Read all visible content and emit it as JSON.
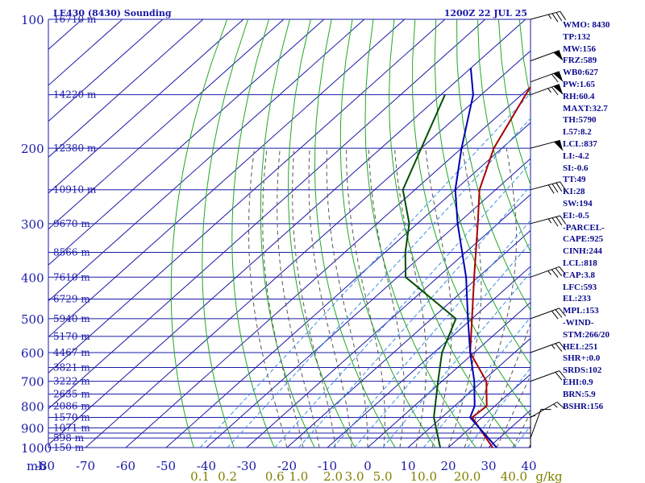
{
  "header": {
    "station": "LE430 (8430) Sounding",
    "datetime": "1200Z 22 JUL 25"
  },
  "indices": [
    "WMO: 8430",
    "TP:132",
    "MW:156",
    "FRZ:589",
    "WB0:627",
    "PW:1.65",
    "RH:60.4",
    "MAXT:32.7",
    "TH:5790",
    "L57:8.2",
    "LCL:837",
    "LI:-4.2",
    "SI:-0.6",
    "TT:49",
    "KI:28",
    "SW:194",
    "EI:-0.5",
    "-PARCEL-",
    "CAPE:925",
    "CINH:244",
    "LCL:818",
    "CAP:3.8",
    "LFC:593",
    "EL:233",
    "MPL:153",
    "-WIND-",
    "STM:266/20",
    "HEL:251",
    "SHR+:0.0",
    "SRDS:102",
    "EHI:0.9",
    "BRN:5.9",
    "BSHR:156"
  ],
  "colors": {
    "isobar": "#1a1aa8",
    "isotherm": "#1a1aa8",
    "dry_adiabat": "#22a822",
    "moist_adiabat": "#555555",
    "mixing_ratio": "#3b8fe0",
    "temperature": "#aa0000",
    "dewpoint": "#005000",
    "parcel": "#0000b0",
    "axis_text": "#1a1aa8",
    "mixing_text": "#808000",
    "sidebar_text": "#0a0a8c",
    "wind": "#000000"
  },
  "chart_data": {
    "type": "line",
    "title": "LE430 (8430) Sounding",
    "subtitle": "1200Z 22 JUL 25",
    "xlabel": "",
    "ylabel": "mb",
    "ylim": [
      1000,
      100
    ],
    "xlim": [
      -80,
      40
    ],
    "pressure_ticks": [
      100,
      200,
      300,
      400,
      500,
      600,
      700,
      800,
      900,
      1000
    ],
    "pressure_levels_lines": [
      100,
      150,
      200,
      250,
      300,
      350,
      400,
      450,
      500,
      550,
      600,
      650,
      700,
      750,
      800,
      850,
      900,
      925,
      950,
      1000
    ],
    "temperature_ticks": [
      -80,
      -70,
      -60,
      -50,
      -40,
      -30,
      -20,
      -10,
      0,
      10,
      20,
      30,
      40
    ],
    "temperature_tick_labels": [
      "-80",
      "-70",
      "-60",
      "-50",
      "-40",
      "-30",
      "-20",
      "-10",
      "0",
      "10",
      "20",
      "30",
      "40"
    ],
    "height_labels": [
      {
        "p": 100,
        "label": "16710 m"
      },
      {
        "p": 150,
        "label": "14220 m"
      },
      {
        "p": 200,
        "label": "12380 m"
      },
      {
        "p": 250,
        "label": "10910 m"
      },
      {
        "p": 300,
        "label": "9670 m"
      },
      {
        "p": 350,
        "label": "8566 m"
      },
      {
        "p": 400,
        "label": "7610 m"
      },
      {
        "p": 450,
        "label": "6729 m"
      },
      {
        "p": 500,
        "label": "5940 m"
      },
      {
        "p": 550,
        "label": "5170 m"
      },
      {
        "p": 600,
        "label": "4467 m"
      },
      {
        "p": 650,
        "label": "3821 m"
      },
      {
        "p": 700,
        "label": "3222 m"
      },
      {
        "p": 750,
        "label": "2635 m"
      },
      {
        "p": 800,
        "label": "2086 m"
      },
      {
        "p": 850,
        "label": "1570 m"
      },
      {
        "p": 900,
        "label": "1071 m"
      },
      {
        "p": 950,
        "label": "598 m"
      },
      {
        "p": 1000,
        "label": "150 m"
      }
    ],
    "mixing_ratio_labels": [
      {
        "w": 0.1,
        "label": "0.1"
      },
      {
        "w": 0.2,
        "label": "0.2"
      },
      {
        "w": 0.6,
        "label": "0.6"
      },
      {
        "w": 1.0,
        "label": "1.0"
      },
      {
        "w": 2.0,
        "label": "2.0"
      },
      {
        "w": 3.0,
        "label": "3.0"
      },
      {
        "w": 5.0,
        "label": "5.0"
      },
      {
        "w": 10.0,
        "label": "10.0"
      },
      {
        "w": 20.0,
        "label": "20.0"
      },
      {
        "w": 40.0,
        "label": "40.0"
      }
    ],
    "mixing_unit": "g/kg",
    "series": [
      {
        "kind": "temperature",
        "points": [
          {
            "p": 1000,
            "t": 31
          },
          {
            "p": 850,
            "t": 17.5
          },
          {
            "p": 800,
            "t": 18
          },
          {
            "p": 700,
            "t": 11
          },
          {
            "p": 600,
            "t": -1
          },
          {
            "p": 500,
            "t": -10
          },
          {
            "p": 400,
            "t": -21
          },
          {
            "p": 300,
            "t": -35
          },
          {
            "p": 250,
            "t": -44
          },
          {
            "p": 200,
            "t": -52
          },
          {
            "p": 150,
            "t": -59
          },
          {
            "p": 120,
            "t": -64
          },
          {
            "p": 100,
            "t": -66
          }
        ]
      },
      {
        "kind": "dewpoint",
        "points": [
          {
            "p": 1000,
            "t": 18
          },
          {
            "p": 850,
            "t": 8
          },
          {
            "p": 700,
            "t": -1
          },
          {
            "p": 600,
            "t": -8
          },
          {
            "p": 500,
            "t": -14
          },
          {
            "p": 400,
            "t": -38
          },
          {
            "p": 350,
            "t": -45
          },
          {
            "p": 300,
            "t": -52
          },
          {
            "p": 250,
            "t": -63
          },
          {
            "p": 200,
            "t": -70
          },
          {
            "p": 150,
            "t": -79
          }
        ]
      },
      {
        "kind": "parcel",
        "points": [
          {
            "p": 1000,
            "t": 32
          },
          {
            "p": 850,
            "t": 17
          },
          {
            "p": 800,
            "t": 15
          },
          {
            "p": 700,
            "t": 8
          },
          {
            "p": 600,
            "t": -1
          },
          {
            "p": 500,
            "t": -11
          },
          {
            "p": 400,
            "t": -23
          },
          {
            "p": 300,
            "t": -40
          },
          {
            "p": 250,
            "t": -50
          },
          {
            "p": 200,
            "t": -60
          },
          {
            "p": 150,
            "t": -72
          },
          {
            "p": 130,
            "t": -80
          }
        ]
      }
    ],
    "wind_levels": [
      {
        "p": 1000,
        "dir": 180,
        "spd": 5
      },
      {
        "p": 950,
        "dir": 200,
        "spd": 10
      },
      {
        "p": 850,
        "dir": 240,
        "spd": 15
      },
      {
        "p": 700,
        "dir": 250,
        "spd": 20
      },
      {
        "p": 600,
        "dir": 250,
        "spd": 25
      },
      {
        "p": 500,
        "dir": 250,
        "spd": 30
      },
      {
        "p": 400,
        "dir": 250,
        "spd": 35
      },
      {
        "p": 300,
        "dir": 255,
        "spd": 35
      },
      {
        "p": 250,
        "dir": 255,
        "spd": 40
      },
      {
        "p": 200,
        "dir": 255,
        "spd": 50
      },
      {
        "p": 150,
        "dir": 250,
        "spd": 65
      },
      {
        "p": 140,
        "dir": 250,
        "spd": 60
      },
      {
        "p": 125,
        "dir": 250,
        "spd": 50
      },
      {
        "p": 100,
        "dir": 255,
        "spd": 35
      }
    ]
  }
}
